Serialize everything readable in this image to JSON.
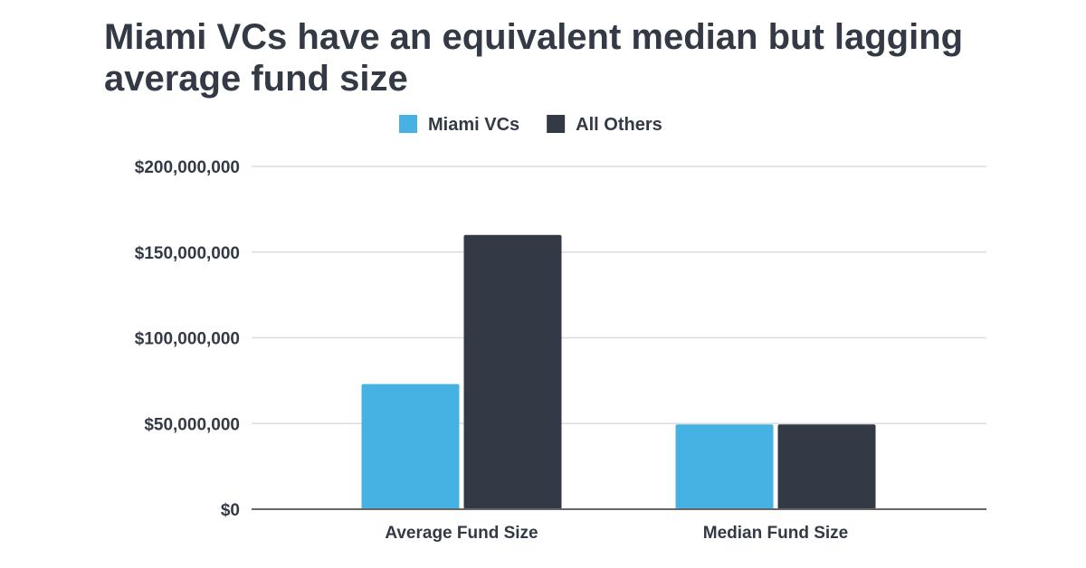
{
  "chart_data": {
    "type": "bar",
    "title": "Miami VCs have an equivalent median but lagging average fund size",
    "categories": [
      "Average Fund Size",
      "Median Fund Size"
    ],
    "series": [
      {
        "name": "Miami VCs",
        "color": "#45b2e3",
        "values": [
          73000000,
          49500000
        ]
      },
      {
        "name": "All Others",
        "color": "#333a45",
        "values": [
          160000000,
          49500000
        ]
      }
    ],
    "ylim": [
      0,
      200000000
    ],
    "yticks": [
      0,
      50000000,
      100000000,
      150000000,
      200000000
    ],
    "ytick_labels": [
      "$0",
      "$50,000,000",
      "$100,000,000",
      "$150,000,000",
      "$200,000,000"
    ],
    "xlabel": "",
    "ylabel": "",
    "grid": true,
    "legend_position": "top-center"
  }
}
